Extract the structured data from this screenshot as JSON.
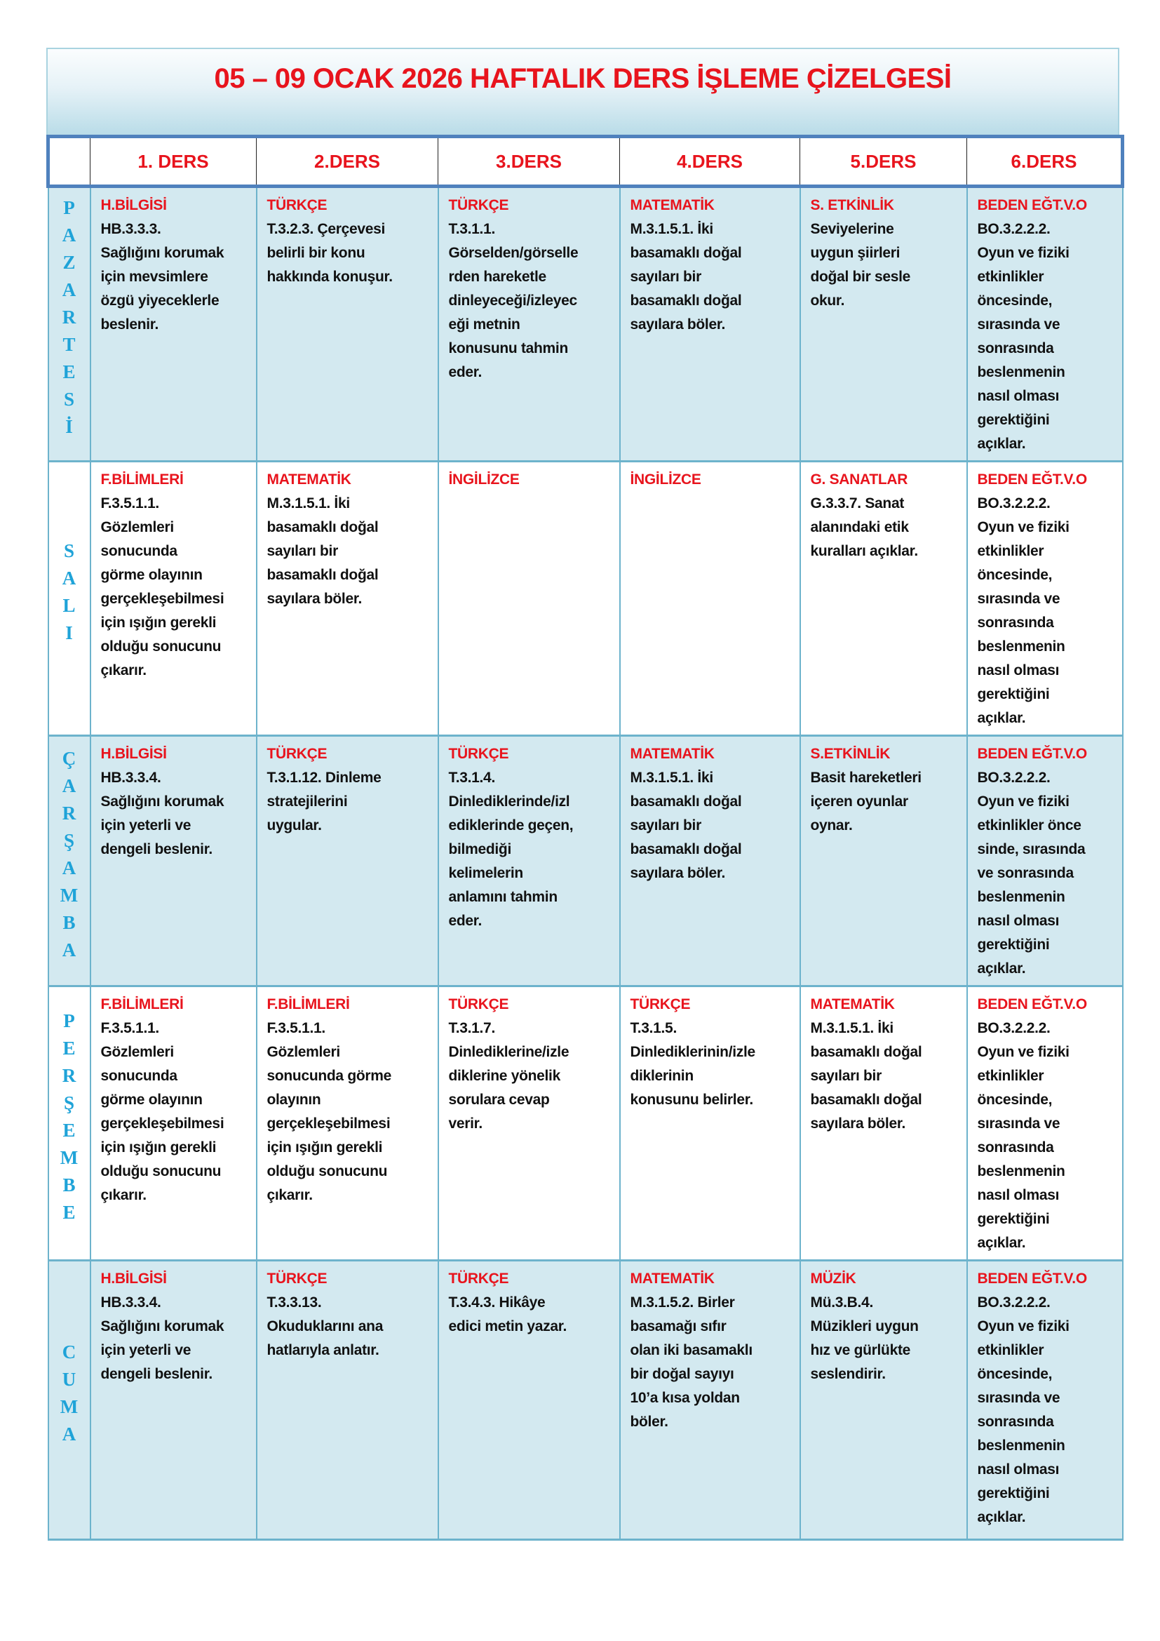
{
  "title": "05 – 09 OCAK 2026 HAFTALIK DERS İŞLEME ÇİZELGESİ",
  "columns": [
    "",
    "1. DERS",
    "2.DERS",
    "3.DERS",
    "4.DERS",
    "5.DERS",
    "6.DERS"
  ],
  "colors": {
    "title": "#e8141d",
    "subject": "#e8141d",
    "day": "#1fa3d8",
    "header_border": "#4f81bd",
    "row_blue": "#d3e9f0"
  },
  "rows": [
    {
      "day": "PAZARTESİ",
      "cells": [
        {
          "subject": "H.BİLGİSİ",
          "text": "HB.3.3.3.\nSağlığını korumak\niçin mevsimlere\nözgü yiyeceklerle\nbeslenir."
        },
        {
          "subject": "TÜRKÇE",
          "text": "T.3.2.3. Çerçevesi\nbelirli bir konu\nhakkında konuşur."
        },
        {
          "subject": "TÜRKÇE",
          "text": "T.3.1.1.\nGörselden/görselle\nrden hareketle\ndinleyeceği/izleyec\neği metnin\nkonusunu tahmin\neder."
        },
        {
          "subject": "MATEMATİK",
          "text": "M.3.1.5.1. İki\nbasamaklı doğal\nsayıları bir\nbasamaklı doğal\nsayılara böler."
        },
        {
          "subject": "S. ETKİNLİK",
          "text": "Seviyelerine\nuygun şiirleri\ndoğal bir sesle\nokur."
        },
        {
          "subject": "BEDEN EĞT.V.O",
          "text": "BO.3.2.2.2.\nOyun ve fiziki\netkinlikler\nöncesinde,\nsırasında ve\nsonrasında\nbeslenmenin\nnasıl olması\ngerektiğini\naçıklar."
        }
      ]
    },
    {
      "day": "SALI",
      "cells": [
        {
          "subject": "F.BİLİMLERİ",
          "text": "F.3.5.1.1.\nGözlemleri\nsonucunda\ngörme olayının\ngerçekleşebilmesi\niçin ışığın gerekli\nolduğu sonucunu\nçıkarır."
        },
        {
          "subject": "MATEMATİK",
          "text": "M.3.1.5.1. İki\nbasamaklı doğal\nsayıları bir\nbasamaklı doğal\nsayılara böler."
        },
        {
          "subject": "İNGİLİZCE",
          "text": ""
        },
        {
          "subject": "İNGİLİZCE",
          "text": ""
        },
        {
          "subject": "G. SANATLAR",
          "text": "G.3.3.7. Sanat\nalanındaki etik\nkuralları açıklar."
        },
        {
          "subject": "BEDEN EĞT.V.O",
          "text": "BO.3.2.2.2.\nOyun ve fiziki\netkinlikler\nöncesinde,\nsırasında ve\nsonrasında\nbeslenmenin\nnasıl olması\ngerektiğini\naçıklar."
        }
      ]
    },
    {
      "day": "ÇARŞAMBA",
      "cells": [
        {
          "subject": "H.BİLGİSİ",
          "text": "HB.3.3.4.\nSağlığını korumak\niçin yeterli ve\ndengeli beslenir."
        },
        {
          "subject": "TÜRKÇE",
          "text": "T.3.1.12. Dinleme\nstratejilerini\nuygular."
        },
        {
          "subject": "TÜRKÇE",
          "text": "T.3.1.4.\nDinlediklerinde/izl\nediklerinde geçen,\nbilmediği\nkelimelerin\nanlamını tahmin\neder."
        },
        {
          "subject": "MATEMATİK",
          "text": "M.3.1.5.1. İki\nbasamaklı doğal\nsayıları bir\nbasamaklı doğal\nsayılara böler."
        },
        {
          "subject": "S.ETKİNLİK",
          "text": "Basit hareketleri\niçeren oyunlar\noynar."
        },
        {
          "subject": "BEDEN EĞT.V.O",
          "text": "BO.3.2.2.2.\nOyun ve fiziki\netkinlikler önce\nsinde, sırasında\nve sonrasında\nbeslenmenin\nnasıl olması\ngerektiğini\naçıklar."
        }
      ]
    },
    {
      "day": "PERŞEMBE",
      "cells": [
        {
          "subject": "F.BİLİMLERİ",
          "text": "F.3.5.1.1.\nGözlemleri\nsonucunda\ngörme olayının\ngerçekleşebilmesi\niçin ışığın gerekli\nolduğu sonucunu\nçıkarır."
        },
        {
          "subject": "F.BİLİMLERİ",
          "text": "F.3.5.1.1.\nGözlemleri\nsonucunda görme\nolayının\ngerçekleşebilmesi\niçin ışığın gerekli\nolduğu sonucunu\nçıkarır."
        },
        {
          "subject": "TÜRKÇE",
          "text": "T.3.1.7.\nDinlediklerine/izle\ndiklerine yönelik\nsorulara cevap\nverir."
        },
        {
          "subject": "TÜRKÇE",
          "text": "T.3.1.5.\nDinlediklerinin/izle\ndiklerinin\nkonusunu belirler."
        },
        {
          "subject": "MATEMATİK",
          "text": "M.3.1.5.1. İki\nbasamaklı doğal\nsayıları bir\nbasamaklı doğal\nsayılara böler."
        },
        {
          "subject": "BEDEN EĞT.V.O",
          "text": "BO.3.2.2.2.\nOyun ve fiziki\netkinlikler\nöncesinde,\nsırasında ve\nsonrasında\nbeslenmenin\nnasıl olması\ngerektiğini\naçıklar."
        }
      ]
    },
    {
      "day": "CUMA",
      "cells": [
        {
          "subject": "H.BİLGİSİ",
          "text": "HB.3.3.4.\nSağlığını korumak\niçin yeterli ve\ndengeli beslenir."
        },
        {
          "subject": "TÜRKÇE",
          "text": "T.3.3.13.\nOkuduklarını ana\nhatlarıyla anlatır."
        },
        {
          "subject": "TÜRKÇE",
          "text": "T.3.4.3. Hikâye\nedici metin yazar."
        },
        {
          "subject": "MATEMATİK",
          "text": "M.3.1.5.2. Birler\nbasamağı sıfır\nolan iki basamaklı\nbir doğal sayıyı\n10’a kısa yoldan\nböler."
        },
        {
          "subject": "MÜZİK",
          "text": "Mü.3.B.4.\nMüzikleri uygun\nhız ve gürlükte\nseslendirir."
        },
        {
          "subject": "BEDEN EĞT.V.O",
          "text": "BO.3.2.2.2.\nOyun ve fiziki\netkinlikler\nöncesinde,\nsırasında ve\nsonrasında\nbeslenmenin\nnasıl olması\ngerektiğini\naçıklar."
        }
      ]
    }
  ]
}
